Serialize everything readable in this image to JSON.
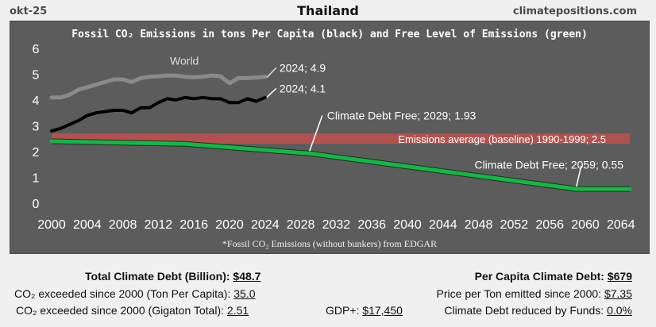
{
  "header": {
    "date": "okt-25",
    "country": "Thailand",
    "site": "climatepositions.com"
  },
  "chart_data": {
    "type": "line",
    "title": "Fossil CO₂ Emissions in tons Per Capita (black) and Free Level of Emissions (green)",
    "footnote": "*Fossil CO₂ Emissions (without bunkers) from EDGAR",
    "xlim": [
      2000,
      2065
    ],
    "ylim": [
      0,
      6
    ],
    "x_ticks": [
      "2000",
      "2004",
      "2008",
      "2012",
      "2016",
      "2020",
      "2024",
      "2028",
      "2032",
      "2036",
      "2040",
      "2044",
      "2048",
      "2052",
      "2056",
      "2060",
      "2064"
    ],
    "y_ticks": [
      "0",
      "1",
      "2",
      "3",
      "4",
      "5",
      "6"
    ],
    "series": [
      {
        "name": "World",
        "color": "#8a8a8a",
        "x": [
          2000,
          2001,
          2002,
          2003,
          2004,
          2005,
          2006,
          2007,
          2008,
          2009,
          2010,
          2011,
          2012,
          2013,
          2014,
          2015,
          2016,
          2017,
          2018,
          2019,
          2020,
          2021,
          2022,
          2023,
          2024
        ],
        "values": [
          4.1,
          4.1,
          4.2,
          4.4,
          4.5,
          4.6,
          4.7,
          4.8,
          4.8,
          4.7,
          4.85,
          4.9,
          4.92,
          4.95,
          4.95,
          4.9,
          4.88,
          4.9,
          4.95,
          4.92,
          4.65,
          4.85,
          4.85,
          4.87,
          4.9
        ]
      },
      {
        "name": "Thailand",
        "color": "#000000",
        "x": [
          2000,
          2001,
          2002,
          2003,
          2004,
          2005,
          2006,
          2007,
          2008,
          2009,
          2010,
          2011,
          2012,
          2013,
          2014,
          2015,
          2016,
          2017,
          2018,
          2019,
          2020,
          2021,
          2022,
          2023,
          2024
        ],
        "values": [
          2.8,
          2.9,
          3.05,
          3.2,
          3.4,
          3.5,
          3.55,
          3.6,
          3.6,
          3.5,
          3.7,
          3.7,
          3.9,
          4.05,
          4.0,
          4.1,
          4.05,
          4.1,
          4.05,
          4.05,
          3.9,
          3.9,
          4.05,
          3.95,
          4.1
        ]
      },
      {
        "name": "Free Level of Emissions",
        "color": "#1fb04a",
        "x": [
          2000,
          2015,
          2029,
          2059,
          2065
        ],
        "values": [
          2.4,
          2.3,
          1.93,
          0.55,
          0.55
        ]
      }
    ],
    "band": {
      "label": "Emissions average (baseline) 1990-1999; 2.5",
      "y_low": 2.3,
      "y_high": 2.7,
      "color": "#c0504d"
    },
    "annotations": [
      {
        "text": "World",
        "x": 2016,
        "y": 5.5
      },
      {
        "text": "2024; 4.9",
        "x": 2024,
        "y": 4.9
      },
      {
        "text": "2024; 4.1",
        "x": 2024,
        "y": 4.1
      },
      {
        "text": "Climate Debt Free; 2029; 1.93",
        "x": 2029,
        "y": 1.93
      },
      {
        "text": "Climate Debt Free; 2059; 0.55",
        "x": 2059,
        "y": 0.55
      }
    ]
  },
  "stats": {
    "total_debt_label": "Total Climate Debt (Billion):",
    "total_debt_value": "$48.7",
    "exceeded_ton_label": "CO₂ exceeded since 2000 (Ton Per Capita):",
    "exceeded_ton_value": "35.0",
    "exceeded_gt_label": "CO₂ exceeded since 2000 (Gigaton Total):",
    "exceeded_gt_value": "2.51",
    "gdp_label": "GDP+:",
    "gdp_value": "$17,450",
    "per_capita_label": "Per Capita Climate Debt:",
    "per_capita_value": "$679",
    "price_label": "Price per Ton emitted since 2000:",
    "price_value": "$7.35",
    "funds_label": "Climate Debt reduced by Funds:",
    "funds_value": "0.0%"
  }
}
